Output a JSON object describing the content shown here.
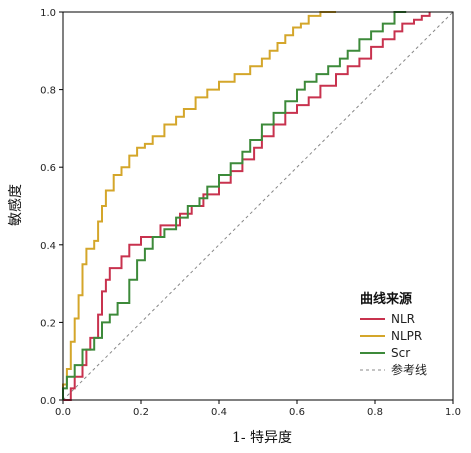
{
  "chart_data": {
    "type": "line",
    "title": "",
    "xlabel": "1- 特异度",
    "ylabel": "敏感度",
    "xlim": [
      0,
      1
    ],
    "ylim": [
      0,
      1
    ],
    "xticks": [
      "0.0",
      "0.2",
      "0.4",
      "0.6",
      "0.8",
      "1.0"
    ],
    "yticks": [
      "0.0",
      "0.2",
      "0.4",
      "0.6",
      "0.8",
      "1.0"
    ],
    "grid": false,
    "legend": {
      "title": "曲线来源",
      "position": "bottom-right",
      "entries": [
        {
          "name": "NLR",
          "color": "#c8324e",
          "dashed": false
        },
        {
          "name": "NLPR",
          "color": "#d4a62a",
          "dashed": false
        },
        {
          "name": "Scr",
          "color": "#3d8a3a",
          "dashed": false
        },
        {
          "name": "参考线",
          "color": "#888888",
          "dashed": true
        }
      ]
    },
    "series": [
      {
        "name": "NLR",
        "color": "#c8324e",
        "x": [
          0.0,
          0.02,
          0.02,
          0.03,
          0.03,
          0.05,
          0.05,
          0.06,
          0.06,
          0.07,
          0.07,
          0.09,
          0.09,
          0.1,
          0.1,
          0.11,
          0.11,
          0.12,
          0.12,
          0.15,
          0.15,
          0.17,
          0.17,
          0.2,
          0.2,
          0.25,
          0.25,
          0.3,
          0.3,
          0.33,
          0.33,
          0.36,
          0.36,
          0.4,
          0.4,
          0.43,
          0.43,
          0.46,
          0.46,
          0.49,
          0.49,
          0.51,
          0.51,
          0.54,
          0.54,
          0.57,
          0.57,
          0.6,
          0.6,
          0.63,
          0.63,
          0.66,
          0.66,
          0.7,
          0.7,
          0.73,
          0.73,
          0.76,
          0.76,
          0.79,
          0.79,
          0.82,
          0.82,
          0.85,
          0.85,
          0.87,
          0.87,
          0.9,
          0.9,
          0.92,
          0.92,
          0.94,
          0.94
        ],
        "y": [
          0.0,
          0.0,
          0.03,
          0.03,
          0.06,
          0.06,
          0.09,
          0.09,
          0.13,
          0.13,
          0.16,
          0.16,
          0.22,
          0.22,
          0.28,
          0.28,
          0.31,
          0.31,
          0.34,
          0.34,
          0.37,
          0.37,
          0.4,
          0.4,
          0.42,
          0.42,
          0.45,
          0.45,
          0.48,
          0.48,
          0.5,
          0.5,
          0.53,
          0.53,
          0.56,
          0.56,
          0.59,
          0.59,
          0.62,
          0.62,
          0.65,
          0.65,
          0.68,
          0.68,
          0.71,
          0.71,
          0.74,
          0.74,
          0.76,
          0.76,
          0.78,
          0.78,
          0.81,
          0.81,
          0.84,
          0.84,
          0.86,
          0.86,
          0.88,
          0.88,
          0.91,
          0.91,
          0.93,
          0.93,
          0.95,
          0.95,
          0.97,
          0.97,
          0.98,
          0.98,
          0.99,
          0.99,
          1.0
        ]
      },
      {
        "name": "NLPR",
        "color": "#d4a62a",
        "x": [
          0.0,
          0.0,
          0.01,
          0.01,
          0.02,
          0.02,
          0.03,
          0.03,
          0.04,
          0.04,
          0.05,
          0.05,
          0.06,
          0.06,
          0.08,
          0.08,
          0.09,
          0.09,
          0.1,
          0.1,
          0.11,
          0.11,
          0.13,
          0.13,
          0.15,
          0.15,
          0.17,
          0.17,
          0.19,
          0.19,
          0.21,
          0.21,
          0.23,
          0.23,
          0.26,
          0.26,
          0.29,
          0.29,
          0.31,
          0.31,
          0.34,
          0.34,
          0.37,
          0.37,
          0.4,
          0.4,
          0.44,
          0.44,
          0.48,
          0.48,
          0.51,
          0.51,
          0.53,
          0.53,
          0.55,
          0.55,
          0.57,
          0.57,
          0.59,
          0.59,
          0.61,
          0.61,
          0.63,
          0.63,
          0.66,
          0.66,
          0.7
        ],
        "y": [
          0.0,
          0.04,
          0.04,
          0.08,
          0.08,
          0.15,
          0.15,
          0.21,
          0.21,
          0.27,
          0.27,
          0.35,
          0.35,
          0.39,
          0.39,
          0.41,
          0.41,
          0.46,
          0.46,
          0.5,
          0.5,
          0.54,
          0.54,
          0.58,
          0.58,
          0.6,
          0.6,
          0.63,
          0.63,
          0.65,
          0.65,
          0.66,
          0.66,
          0.68,
          0.68,
          0.71,
          0.71,
          0.73,
          0.73,
          0.75,
          0.75,
          0.78,
          0.78,
          0.8,
          0.8,
          0.82,
          0.82,
          0.84,
          0.84,
          0.86,
          0.86,
          0.88,
          0.88,
          0.9,
          0.9,
          0.92,
          0.92,
          0.94,
          0.94,
          0.96,
          0.96,
          0.97,
          0.97,
          0.99,
          0.99,
          1.0,
          1.0
        ]
      },
      {
        "name": "Scr",
        "color": "#3d8a3a",
        "x": [
          0.0,
          0.0,
          0.01,
          0.01,
          0.03,
          0.03,
          0.05,
          0.05,
          0.08,
          0.08,
          0.1,
          0.1,
          0.12,
          0.12,
          0.14,
          0.14,
          0.17,
          0.17,
          0.19,
          0.19,
          0.21,
          0.21,
          0.23,
          0.23,
          0.26,
          0.26,
          0.29,
          0.29,
          0.32,
          0.32,
          0.35,
          0.35,
          0.37,
          0.37,
          0.4,
          0.4,
          0.43,
          0.43,
          0.46,
          0.46,
          0.48,
          0.48,
          0.51,
          0.51,
          0.54,
          0.54,
          0.57,
          0.57,
          0.6,
          0.6,
          0.62,
          0.62,
          0.65,
          0.65,
          0.68,
          0.68,
          0.71,
          0.71,
          0.73,
          0.73,
          0.76,
          0.76,
          0.79,
          0.79,
          0.82,
          0.82,
          0.85,
          0.85,
          0.88
        ],
        "y": [
          0.0,
          0.03,
          0.03,
          0.06,
          0.06,
          0.09,
          0.09,
          0.13,
          0.13,
          0.16,
          0.16,
          0.2,
          0.2,
          0.22,
          0.22,
          0.25,
          0.25,
          0.31,
          0.31,
          0.36,
          0.36,
          0.39,
          0.39,
          0.42,
          0.42,
          0.44,
          0.44,
          0.47,
          0.47,
          0.5,
          0.5,
          0.52,
          0.52,
          0.55,
          0.55,
          0.58,
          0.58,
          0.61,
          0.61,
          0.64,
          0.64,
          0.67,
          0.67,
          0.71,
          0.71,
          0.74,
          0.74,
          0.77,
          0.77,
          0.8,
          0.8,
          0.82,
          0.82,
          0.84,
          0.84,
          0.86,
          0.86,
          0.88,
          0.88,
          0.9,
          0.9,
          0.93,
          0.93,
          0.95,
          0.95,
          0.97,
          0.97,
          1.0,
          1.0
        ]
      }
    ]
  }
}
